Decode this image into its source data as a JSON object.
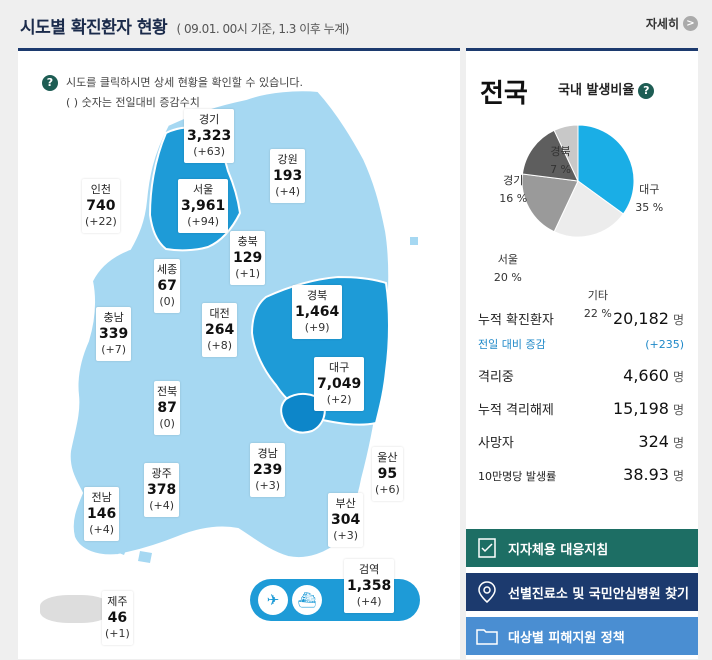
{
  "header": {
    "title": "시도별 확진환자 현황",
    "subtitle": "( 09.01. 00시 기준, 1.3 이후 누계)",
    "more_label": "자세히",
    "more_icon": ">"
  },
  "help": {
    "line1": "시도를 클릭하시면 상세 현황을 확인할 수 있습니다.",
    "line2": "( ) 숫자는 전일대비 증감수치",
    "icon": "?"
  },
  "regions": {
    "gyeonggi": {
      "name": "경기",
      "value": "3,323",
      "diff": "(+63)"
    },
    "gangwon": {
      "name": "강원",
      "value": "193",
      "diff": "(+4)"
    },
    "incheon": {
      "name": "인천",
      "value": "740",
      "diff": "(+22)"
    },
    "seoul": {
      "name": "서울",
      "value": "3,961",
      "diff": "(+94)"
    },
    "chungbuk": {
      "name": "충북",
      "value": "129",
      "diff": "(+1)"
    },
    "sejong": {
      "name": "세종",
      "value": "67",
      "diff": "(0)"
    },
    "chungnam": {
      "name": "충남",
      "value": "339",
      "diff": "(+7)"
    },
    "daejeon": {
      "name": "대전",
      "value": "264",
      "diff": "(+8)"
    },
    "gyeongbuk": {
      "name": "경북",
      "value": "1,464",
      "diff": "(+9)"
    },
    "daegu": {
      "name": "대구",
      "value": "7,049",
      "diff": "(+2)"
    },
    "jeonbuk": {
      "name": "전북",
      "value": "87",
      "diff": "(0)"
    },
    "gyeongnam": {
      "name": "경남",
      "value": "239",
      "diff": "(+3)"
    },
    "ulsan": {
      "name": "울산",
      "value": "95",
      "diff": "(+6)"
    },
    "gwangju": {
      "name": "광주",
      "value": "378",
      "diff": "(+4)"
    },
    "jeonnam": {
      "name": "전남",
      "value": "146",
      "diff": "(+4)"
    },
    "busan": {
      "name": "부산",
      "value": "304",
      "diff": "(+3)"
    },
    "jeju": {
      "name": "제주",
      "value": "46",
      "diff": "(+1)"
    },
    "quarantine": {
      "name": "검역",
      "value": "1,358",
      "diff": "(+4)"
    }
  },
  "quarantine_icons": {
    "airplane": "✈",
    "ship": "⛴"
  },
  "national": {
    "title": "전국",
    "ratio_title": "국내 발생비율",
    "stats": {
      "confirmed_label": "누적 확진환자",
      "confirmed_value": "20,182",
      "confirmed_unit": "명",
      "daily_label": "전일 대비 증감",
      "daily_value": "(+235)",
      "isolated_label": "격리중",
      "isolated_value": "4,660",
      "isolated_unit": "명",
      "released_label": "누적 격리해제",
      "released_value": "15,198",
      "released_unit": "명",
      "deaths_label": "사망자",
      "deaths_value": "324",
      "deaths_unit": "명",
      "rate_label": "10만명당 발생률",
      "rate_value": "38.93",
      "rate_unit": "명"
    }
  },
  "chart_data": {
    "type": "pie",
    "title": "국내 발생비율",
    "slices": [
      {
        "label": "대구",
        "value": 35,
        "text": "35 %",
        "color": "#1aaee6"
      },
      {
        "label": "기타",
        "value": 22,
        "text": "22 %",
        "color": "#ececec"
      },
      {
        "label": "서울",
        "value": 20,
        "text": "20 %",
        "color": "#9a9a9a"
      },
      {
        "label": "경기",
        "value": 16,
        "text": "16 %",
        "color": "#5e5e5e"
      },
      {
        "label": "경북",
        "value": 7,
        "text": "7 %",
        "color": "#c8c8c8"
      }
    ]
  },
  "buttons": {
    "b1": "지자체용 대응지침",
    "b2": "선별진료소 및 국민안심병원 찾기",
    "b3": "대상별 피해지원 정책"
  },
  "colors": {
    "light_region": "#a6d8f2",
    "mid_region": "#1e9bd7",
    "dark_region": "#0d86c9",
    "nav": "#1c3a6e",
    "teal": "#1d6e64"
  }
}
